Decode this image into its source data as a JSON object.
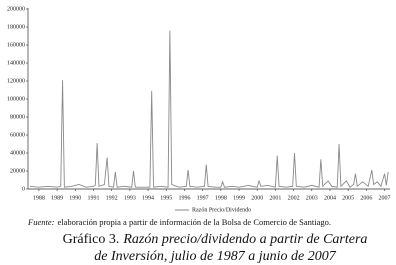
{
  "chart_data": {
    "type": "line",
    "x": [
      1987.5,
      1988,
      1988.5,
      1989,
      1989.2,
      1989.3,
      1989.4,
      1989.8,
      1990.2,
      1990.6,
      1991,
      1991.1,
      1991.2,
      1991.3,
      1991.6,
      1991.75,
      1991.85,
      1992.1,
      1992.2,
      1992.3,
      1992.7,
      1993.1,
      1993.2,
      1993.3,
      1993.7,
      1994.1,
      1994.2,
      1994.3,
      1994.7,
      1995.1,
      1995.2,
      1995.3,
      1995.7,
      1996.1,
      1996.2,
      1996.3,
      1996.7,
      1997.1,
      1997.2,
      1997.3,
      1997.7,
      1998,
      1998.1,
      1998.2,
      1998.6,
      1999,
      1999.5,
      2000,
      2000.1,
      2000.2,
      2000.6,
      2001,
      2001.1,
      2001.2,
      2001.6,
      2001.95,
      2002.05,
      2002.15,
      2002.6,
      2003,
      2003.4,
      2003.5,
      2003.6,
      2003.9,
      2004.1,
      2004.4,
      2004.5,
      2004.6,
      2004.9,
      2005.1,
      2005.3,
      2005.4,
      2005.5,
      2005.8,
      2006.1,
      2006.2,
      2006.3,
      2006.4,
      2006.6,
      2006.8,
      2007,
      2007.1,
      2007.2
    ],
    "series": [
      {
        "name": "Razón Precio/Dividendo",
        "color": "#8a8a8a",
        "values": [
          3000,
          2000,
          3000,
          2000,
          3000,
          121000,
          2000,
          3000,
          5000,
          2000,
          3000,
          4000,
          51000,
          3000,
          5000,
          35000,
          3000,
          2000,
          19000,
          2000,
          3000,
          2000,
          20000,
          2000,
          2000,
          2000,
          109000,
          2000,
          3000,
          2000,
          176000,
          5000,
          2000,
          3000,
          21000,
          3000,
          2000,
          3000,
          27000,
          3000,
          2000,
          2000,
          8000,
          2000,
          3000,
          2000,
          4000,
          2000,
          9000,
          3000,
          4000,
          2000,
          37000,
          3000,
          2000,
          3000,
          40000,
          3000,
          2000,
          4000,
          2000,
          33000,
          3000,
          9000,
          3000,
          2000,
          50000,
          3000,
          9000,
          2000,
          5000,
          17000,
          3000,
          8000,
          3000,
          12000,
          21000,
          5000,
          8000,
          3000,
          17000,
          4000,
          19000
        ]
      }
    ],
    "xlim": [
      1987.4,
      2007.3
    ],
    "xticks": [
      1988,
      1989,
      1990,
      1991,
      1992,
      1993,
      1994,
      1995,
      1996,
      1997,
      1998,
      1999,
      2000,
      2001,
      2002,
      2003,
      2004,
      2005,
      2006,
      2007
    ],
    "ylim": [
      0,
      200000
    ],
    "yticks": [
      0,
      20000,
      40000,
      60000,
      80000,
      100000,
      120000,
      140000,
      160000,
      180000,
      200000
    ],
    "legend": "bottom",
    "source_label": "Fuente:",
    "source_text": "elaboración propia a partir de información de la Bolsa de Comercio de Santiago.",
    "caption_label": "Gráfico 3.",
    "caption_lines": [
      "Razón precio/dividendo a partir de Cartera",
      "de Inversión, julio de 1987 a junio de 2007"
    ]
  }
}
